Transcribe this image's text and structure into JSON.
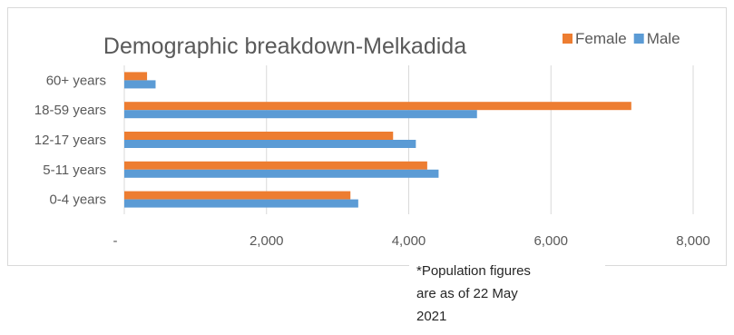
{
  "chart_data": {
    "type": "bar",
    "orientation": "horizontal",
    "title": "Demographic breakdown-Melkadida",
    "categories": [
      "0-4 years",
      "5-11 years",
      "12-17 years",
      "18-59 years",
      "60+ years"
    ],
    "series": [
      {
        "name": "Female",
        "color": "#ED7D31",
        "values": [
          3180,
          4260,
          3780,
          7130,
          320
        ]
      },
      {
        "name": "Male",
        "color": "#5B9BD5",
        "values": [
          3290,
          4420,
          4100,
          4960,
          440
        ]
      }
    ],
    "xlim": [
      0,
      8000
    ],
    "x_ticks": [
      0,
      2000,
      4000,
      6000,
      8000
    ],
    "x_tick_labels": [
      "-",
      "2,000",
      "4,000",
      "6,000",
      "8,000"
    ],
    "grid": true,
    "legend_position": "top-right",
    "xlabel": "",
    "ylabel": ""
  },
  "note": {
    "lines": [
      "*Population figures",
      "are as of 22 May",
      "2021"
    ]
  }
}
